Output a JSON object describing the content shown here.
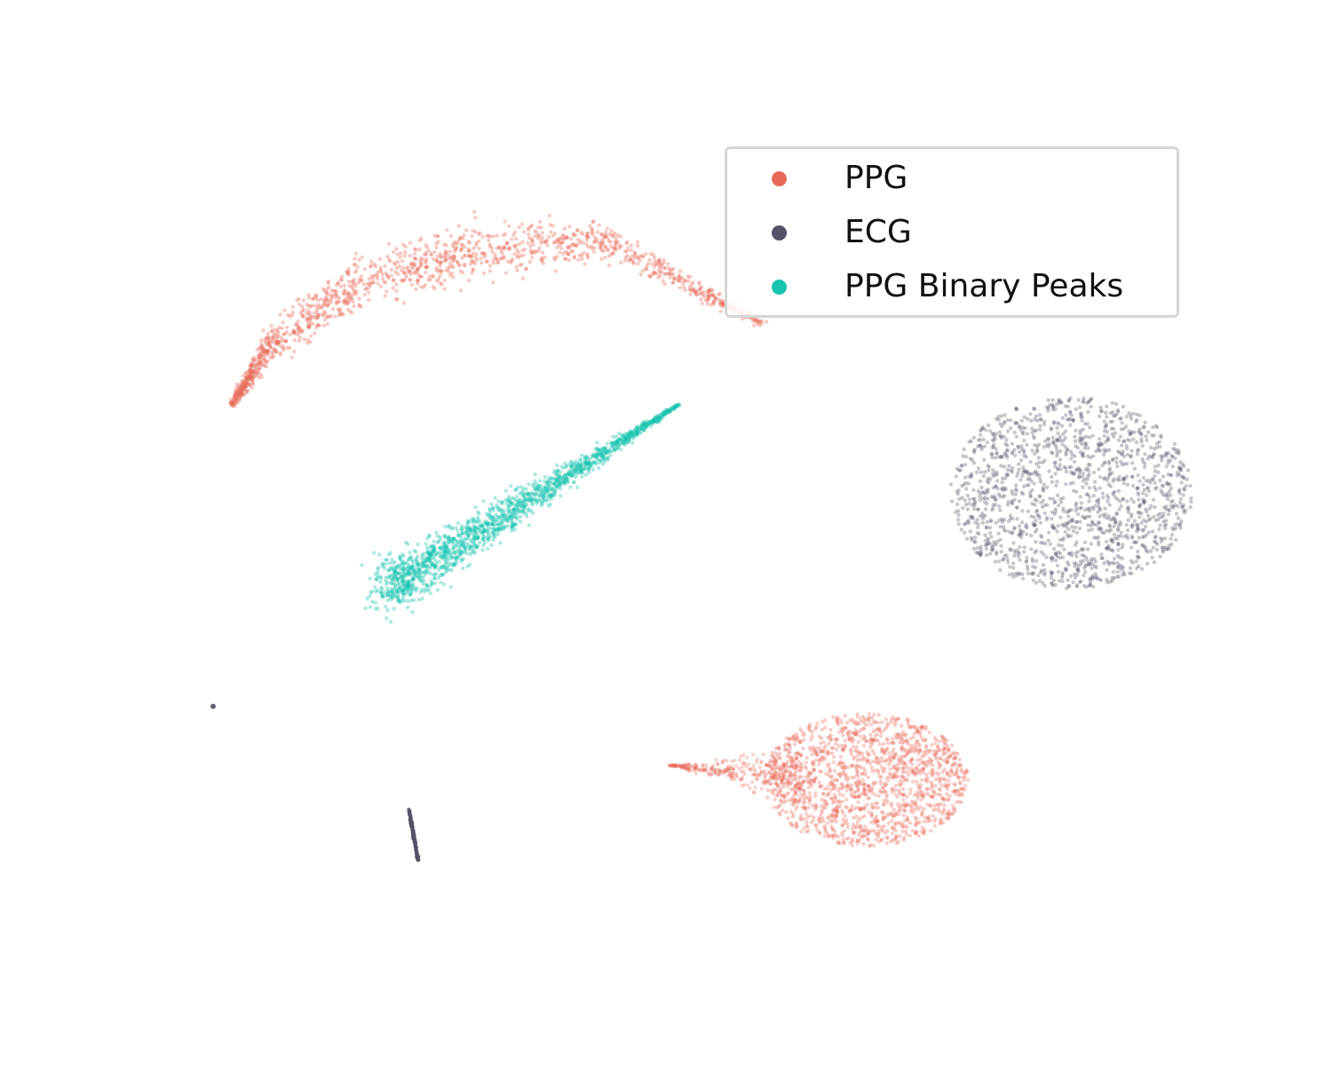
{
  "chart_data": {
    "type": "scatter",
    "title": "",
    "xlabel": "",
    "ylabel": "",
    "axes_visible": false,
    "grid": false,
    "legend_placement": "top-right",
    "xlim": [
      0,
      10
    ],
    "ylim": [
      0,
      10
    ],
    "series": [
      {
        "name": "PPG",
        "color": "#e8695a",
        "clusters": [
          {
            "shape": "arc",
            "x": [
              0.2,
              0.6,
              1.5,
              2.8,
              4.2,
              5.9
            ],
            "y": [
              6.8,
              7.6,
              8.4,
              8.9,
              9.0,
              7.9
            ],
            "spread": 0.28
          },
          {
            "shape": "blob",
            "center": [
              7.0,
              1.7
            ],
            "radius": [
              1.1,
              0.9
            ],
            "tail_to": [
              4.9,
              1.9
            ]
          }
        ]
      },
      {
        "name": "ECG",
        "color": "#545266",
        "clusters": [
          {
            "shape": "blob",
            "center": [
              9.2,
              5.6
            ],
            "radius": [
              1.3,
              1.3
            ]
          },
          {
            "shape": "line",
            "from": [
              2.1,
              1.3
            ],
            "to": [
              2.2,
              0.6
            ]
          },
          {
            "shape": "point",
            "center": [
              0.0,
              2.7
            ]
          }
        ]
      },
      {
        "name": "PPG Binary Peaks",
        "color": "#17c4ae",
        "clusters": [
          {
            "shape": "wedge",
            "from": [
              1.9,
              4.3
            ],
            "to": [
              5.0,
              6.8
            ]
          }
        ]
      }
    ]
  }
}
